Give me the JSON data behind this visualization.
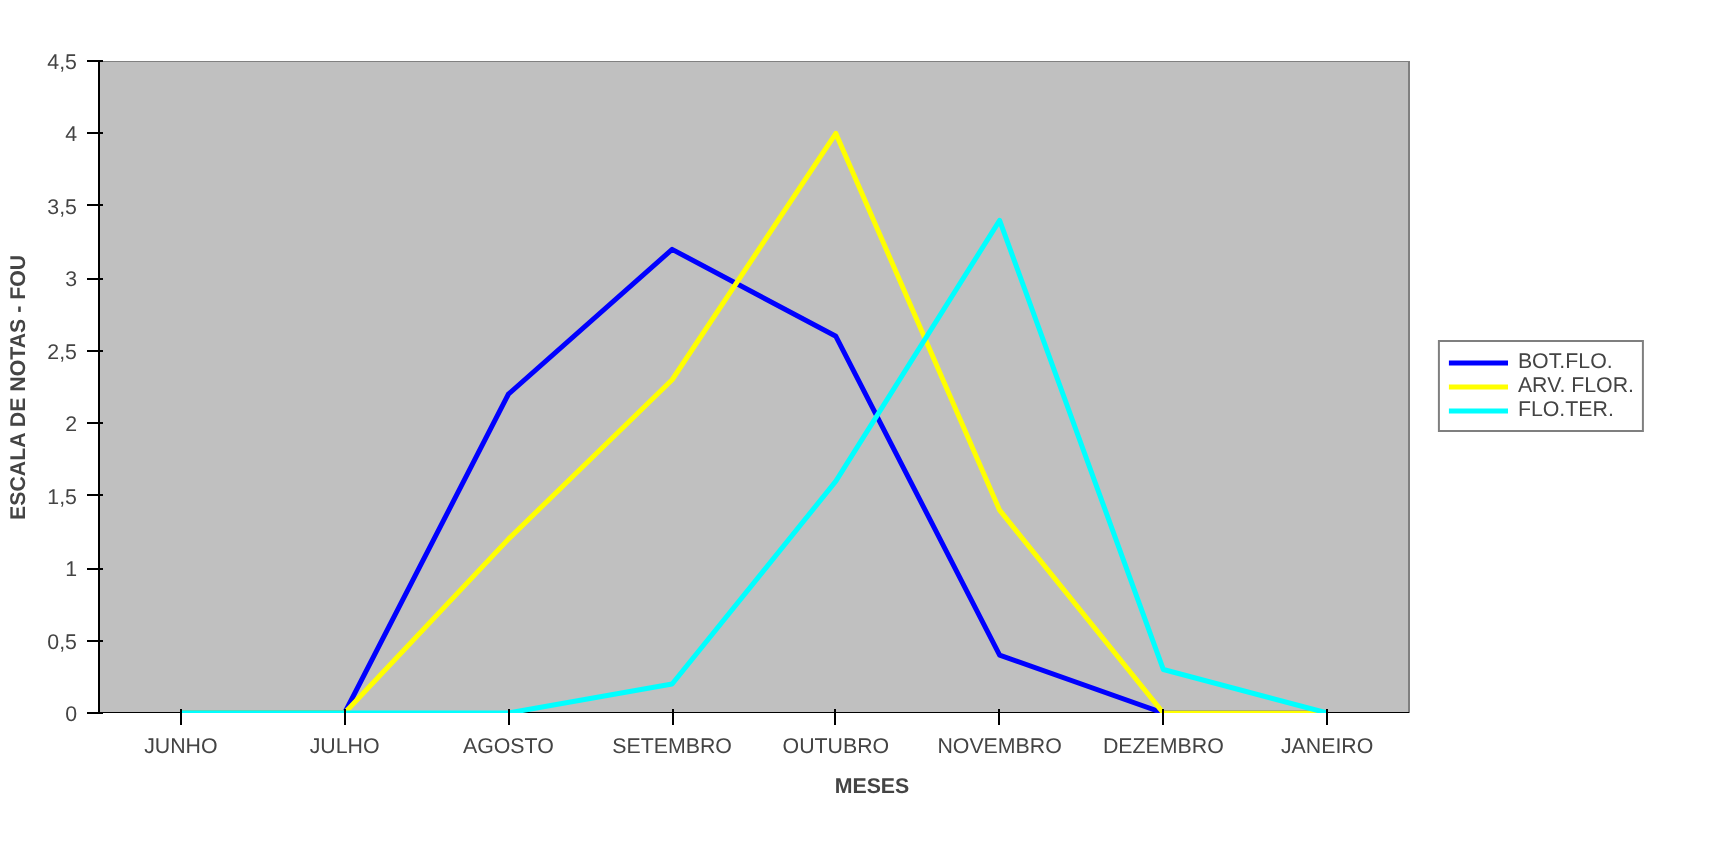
{
  "chart_data": {
    "type": "line",
    "xlabel": "MESES",
    "ylabel": "ESCALA DE NOTAS - FOU",
    "categories": [
      "JUNHO",
      "JULHO",
      "AGOSTO",
      "SETEMBRO",
      "OUTUBRO",
      "NOVEMBRO",
      "DEZEMBRO",
      "JANEIRO"
    ],
    "series": [
      {
        "name": "BOT.FLO.",
        "color": "#0000ff",
        "values": [
          0,
          0,
          2.2,
          3.2,
          2.6,
          0.4,
          0,
          0
        ]
      },
      {
        "name": "ARV. FLOR.",
        "color": "#ffff00",
        "values": [
          0,
          0,
          1.2,
          2.3,
          4.0,
          1.4,
          0,
          0
        ]
      },
      {
        "name": "FLO.TER.",
        "color": "#00ffff",
        "values": [
          0,
          0,
          0,
          0.2,
          1.6,
          3.4,
          0.3,
          0
        ]
      }
    ],
    "ylim": [
      0,
      4.5
    ],
    "yticks": [
      0,
      {
        "value": 0.5,
        "label": "0,5"
      },
      1,
      {
        "value": 1.5,
        "label": "1,5"
      },
      2,
      {
        "value": 2.5,
        "label": "2,5"
      },
      3,
      {
        "value": 3.5,
        "label": "3,5"
      },
      4,
      {
        "value": 4.5,
        "label": "4,5"
      }
    ],
    "grid": false,
    "legend": "right",
    "marker": "none",
    "line_style": "solid"
  }
}
